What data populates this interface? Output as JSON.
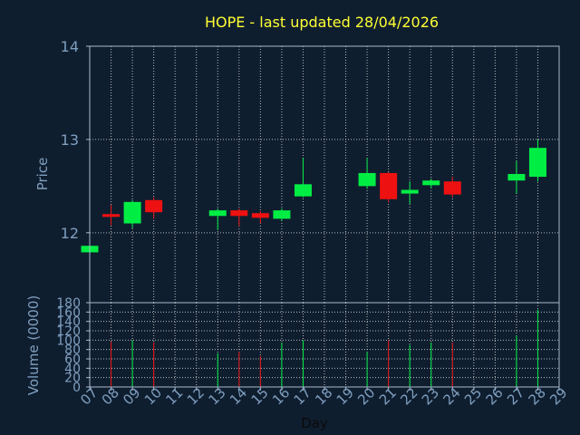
{
  "chart_data": [
    {
      "type": "candlestick",
      "title": "HOPE - last updated 28/04/2026",
      "ylabel": "Price",
      "ylim": [
        11.25,
        14
      ],
      "yticks": [
        12,
        13,
        14
      ],
      "x_ticks": [
        "07",
        "08",
        "09",
        "10",
        "11",
        "12",
        "13",
        "14",
        "15",
        "16",
        "17",
        "18",
        "19",
        "20",
        "21",
        "22",
        "23",
        "24",
        "25",
        "26",
        "27",
        "28",
        "29"
      ],
      "candles": [
        {
          "day": "07",
          "open": 11.79,
          "high": 11.86,
          "low": 11.79,
          "close": 11.86
        },
        {
          "day": "08",
          "open": 12.2,
          "high": 12.3,
          "low": 12.08,
          "close": 12.17
        },
        {
          "day": "09",
          "open": 12.1,
          "high": 12.35,
          "low": 12.05,
          "close": 12.33
        },
        {
          "day": "10",
          "open": 12.35,
          "high": 12.38,
          "low": 12.15,
          "close": 12.22
        },
        {
          "day": "13",
          "open": 12.18,
          "high": 12.26,
          "low": 12.03,
          "close": 12.24
        },
        {
          "day": "14",
          "open": 12.24,
          "high": 12.26,
          "low": 12.07,
          "close": 12.18
        },
        {
          "day": "15",
          "open": 12.21,
          "high": 12.23,
          "low": 12.1,
          "close": 12.16
        },
        {
          "day": "16",
          "open": 12.15,
          "high": 12.26,
          "low": 12.13,
          "close": 12.24
        },
        {
          "day": "17",
          "open": 12.39,
          "high": 12.8,
          "low": 12.38,
          "close": 12.52
        },
        {
          "day": "20",
          "open": 12.5,
          "high": 12.8,
          "low": 12.47,
          "close": 12.64
        },
        {
          "day": "21",
          "open": 12.64,
          "high": 12.65,
          "low": 12.33,
          "close": 12.36
        },
        {
          "day": "22",
          "open": 12.42,
          "high": 12.55,
          "low": 12.31,
          "close": 12.46
        },
        {
          "day": "23",
          "open": 12.51,
          "high": 12.58,
          "low": 12.48,
          "close": 12.56
        },
        {
          "day": "24",
          "open": 12.55,
          "high": 12.6,
          "low": 12.38,
          "close": 12.41
        },
        {
          "day": "27",
          "open": 12.56,
          "high": 12.77,
          "low": 12.42,
          "close": 12.63
        },
        {
          "day": "28",
          "open": 12.6,
          "high": 13.0,
          "low": 12.55,
          "close": 12.91
        }
      ],
      "colors": {
        "up": "#00ee44",
        "down": "#ee1111",
        "grid": "#e0e0e0",
        "axis": "#a9b9c9",
        "title": "#ffff33",
        "label": "#7f9fbf"
      }
    },
    {
      "type": "bar",
      "ylabel": "Volume (0000)",
      "xlabel": "Day",
      "ylim": [
        0,
        180
      ],
      "yticks": [
        0,
        20,
        40,
        60,
        80,
        100,
        120,
        140,
        160,
        180
      ],
      "x_ticks": [
        "07",
        "08",
        "09",
        "10",
        "11",
        "12",
        "13",
        "14",
        "15",
        "16",
        "17",
        "18",
        "19",
        "20",
        "21",
        "22",
        "23",
        "24",
        "25",
        "26",
        "27",
        "28",
        "29"
      ],
      "bars": [
        {
          "day": "08",
          "value": 97,
          "direction": "down"
        },
        {
          "day": "09",
          "value": 100,
          "direction": "up"
        },
        {
          "day": "10",
          "value": 95,
          "direction": "down"
        },
        {
          "day": "13",
          "value": 72,
          "direction": "up"
        },
        {
          "day": "14",
          "value": 75,
          "direction": "down"
        },
        {
          "day": "15",
          "value": 66,
          "direction": "down"
        },
        {
          "day": "16",
          "value": 95,
          "direction": "up"
        },
        {
          "day": "17",
          "value": 100,
          "direction": "up"
        },
        {
          "day": "20",
          "value": 75,
          "direction": "up"
        },
        {
          "day": "21",
          "value": 100,
          "direction": "down"
        },
        {
          "day": "22",
          "value": 90,
          "direction": "up"
        },
        {
          "day": "23",
          "value": 95,
          "direction": "up"
        },
        {
          "day": "24",
          "value": 95,
          "direction": "down"
        },
        {
          "day": "27",
          "value": 110,
          "direction": "up"
        },
        {
          "day": "28",
          "value": 165,
          "direction": "up"
        }
      ]
    }
  ]
}
